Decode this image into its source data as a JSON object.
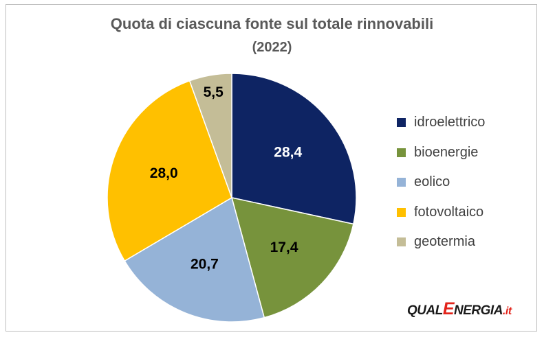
{
  "chart_data": {
    "type": "pie",
    "title": "Quota di ciascuna fonte sul totale rinnovabili",
    "subtitle": "(2022)",
    "categories": [
      "idroelettrico",
      "bioenergie",
      "eolico",
      "fotovoltaico",
      "geotermia"
    ],
    "values": [
      28.4,
      17.4,
      20.7,
      28.0,
      5.5
    ],
    "value_labels": [
      "28,4",
      "17,4",
      "20,7",
      "28,0",
      "5,5"
    ],
    "colors": [
      "#0e2463",
      "#77933c",
      "#95b3d7",
      "#ffc000",
      "#c4bd97"
    ],
    "label_colors": [
      "#ffffff",
      "#000000",
      "#000000",
      "#000000",
      "#000000"
    ],
    "legend_position": "right",
    "start_angle": "12 o'clock, clockwise"
  },
  "logo": {
    "text_before": "QUAL",
    "text_e": "E",
    "text_after": "NERGIA",
    "text_suffix": ".it"
  }
}
